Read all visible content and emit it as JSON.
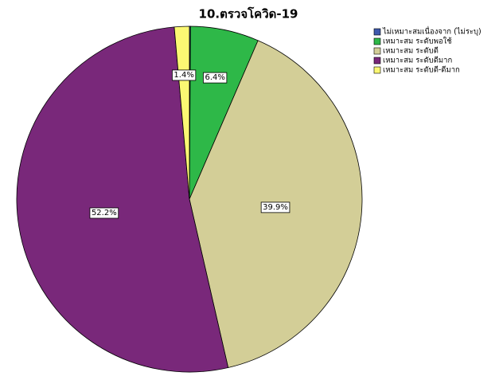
{
  "chart_data": {
    "type": "pie",
    "title": "10.ตรวจโควิด-19",
    "categories": [
      "ไม่เหมาะสมเนื่องจาก (ไม่ระบุ)",
      "เหมาะสม ระดับพอใช้",
      "เหมาะสม ระดับดี",
      "เหมาะสม ระดับดีมาก",
      "เหมาะสม ระดับดี-ดีมาก"
    ],
    "values": [
      0.1,
      6.4,
      39.9,
      52.2,
      1.4
    ],
    "value_labels": [
      null,
      "6.4%",
      "39.9%",
      "52.2%",
      "1.4%"
    ],
    "colors": [
      "#3e58ac",
      "#2eb848",
      "#d3ce97",
      "#79287a",
      "#fbf873"
    ],
    "legend": "top-right"
  }
}
